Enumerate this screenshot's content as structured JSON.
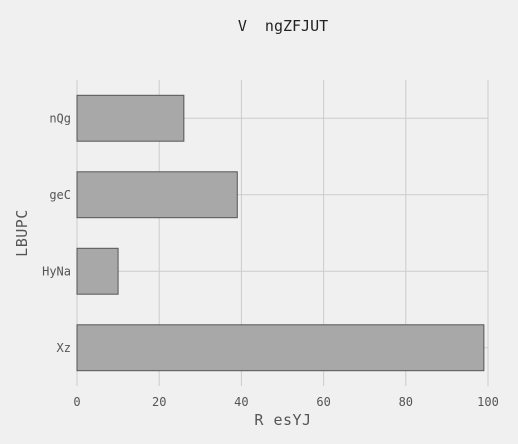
{
  "chart_data": {
    "type": "bar",
    "orientation": "horizontal",
    "title": "V  ngZFJUT",
    "xlabel": "R esYJ",
    "ylabel": "LBUPC",
    "categories": [
      "nQg",
      "geC",
      "HyNa",
      "Xz"
    ],
    "values": [
      26,
      39,
      10,
      99
    ],
    "xlim": [
      0,
      100
    ],
    "xticks": [
      0,
      20,
      40,
      60,
      80,
      100
    ],
    "grid": true,
    "colors": {
      "bar_fill": "#a8a8a8",
      "bar_edge": "#555555",
      "background": "#f0f0f0"
    }
  }
}
